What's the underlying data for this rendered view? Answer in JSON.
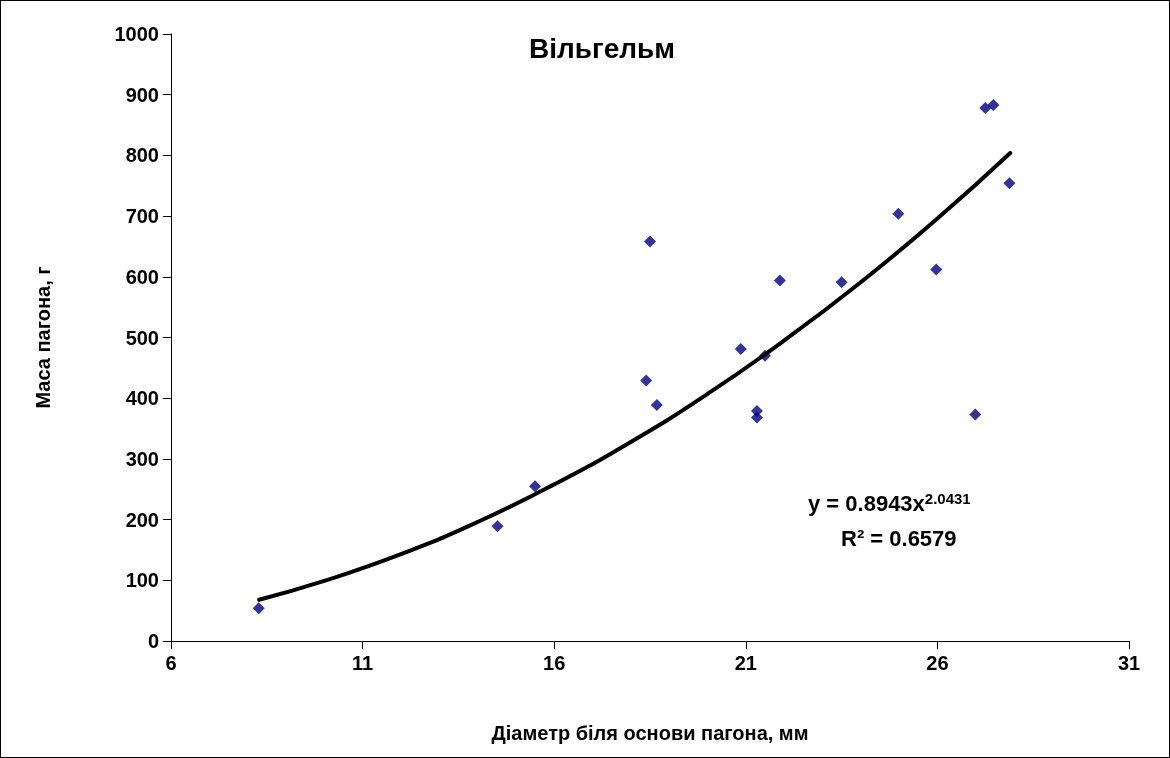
{
  "chart_data": {
    "type": "scatter",
    "title": "Вільгельм",
    "xlabel": "Діаметр біля основи пагона, мм",
    "ylabel": "Маса пагона, г",
    "xlim": [
      6,
      31
    ],
    "xticks": [
      6,
      11,
      16,
      21,
      26,
      31
    ],
    "ylim": [
      0,
      1000
    ],
    "yticks": [
      0,
      100,
      200,
      300,
      400,
      500,
      600,
      700,
      800,
      900,
      1000
    ],
    "grid": false,
    "marker": "diamond",
    "series": [
      {
        "color": "#000080",
        "x": [
          8.29,
          14.52,
          15.5,
          18.4,
          18.5,
          18.68,
          20.87,
          21.29,
          21.29,
          21.5,
          21.89,
          23.5,
          24.98,
          25.97,
          26.99,
          27.25,
          27.46,
          27.88
        ],
        "values": [
          54,
          189,
          255,
          429,
          658,
          389,
          481,
          379,
          368,
          470,
          594,
          591,
          704,
          612,
          373,
          878,
          883,
          754
        ]
      },
      {
        "type": "line",
        "color": "#000000",
        "marker": "none",
        "line_style": "solid",
        "x": [
          8.3,
          10,
          12,
          14,
          16,
          18,
          20,
          22,
          24,
          26,
          27.9
        ],
        "values": [
          68,
          99,
          143,
          196,
          258,
          328,
          407,
          495,
          591,
          696,
          804
        ]
      }
    ],
    "annotations": [
      "y = 0.8943x$^{2.0431}$",
      "R² = 0.6579"
    ]
  }
}
